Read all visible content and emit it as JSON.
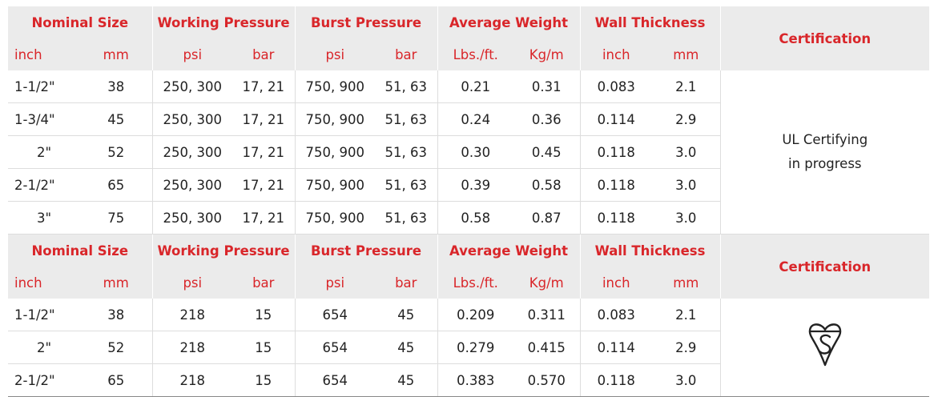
{
  "sections": [
    {
      "headers": {
        "nominal_size": "Nominal Size",
        "working_pressure": "Working Pressure",
        "burst_pressure": "Burst Pressure",
        "average_weight": "Average Weight",
        "wall_thickness": "Wall Thickness",
        "certification": "Certification"
      },
      "units": [
        "inch",
        "mm",
        "psi",
        "bar",
        "psi",
        "bar",
        "Lbs./ft.",
        "Kg/m",
        "inch",
        "mm"
      ],
      "rows": [
        [
          "1-1/2\"",
          "38",
          "250, 300",
          "17, 21",
          "750, 900",
          "51, 63",
          "0.21",
          "0.31",
          "0.083",
          "2.1"
        ],
        [
          "1-3/4\"",
          "45",
          "250, 300",
          "17, 21",
          "750, 900",
          "51, 63",
          "0.24",
          "0.36",
          "0.114",
          "2.9"
        ],
        [
          "2\"",
          "52",
          "250, 300",
          "17, 21",
          "750, 900",
          "51, 63",
          "0.30",
          "0.45",
          "0.118",
          "3.0"
        ],
        [
          "2-1/2\"",
          "65",
          "250, 300",
          "17, 21",
          "750, 900",
          "51, 63",
          "0.39",
          "0.58",
          "0.118",
          "3.0"
        ],
        [
          "3\"",
          "75",
          "250, 300",
          "17, 21",
          "750, 900",
          "51, 63",
          "0.58",
          "0.87",
          "0.118",
          "3.0"
        ]
      ],
      "certification": {
        "line1": "UL Certifying",
        "line2": "in progress"
      }
    },
    {
      "headers": {
        "nominal_size": "Nominal Size",
        "working_pressure": "Working Pressure",
        "burst_pressure": "Burst Pressure",
        "average_weight": "Average Weight",
        "wall_thickness": "Wall Thickness",
        "certification": "Certification"
      },
      "units": [
        "inch",
        "mm",
        "psi",
        "bar",
        "psi",
        "bar",
        "Lbs./ft.",
        "Kg/m",
        "inch",
        "mm"
      ],
      "rows": [
        [
          "1-1/2\"",
          "38",
          "218",
          "15",
          "654",
          "45",
          "0.209",
          "0.311",
          "0.083",
          "2.1"
        ],
        [
          "2\"",
          "52",
          "218",
          "15",
          "654",
          "45",
          "0.279",
          "0.415",
          "0.114",
          "2.9"
        ],
        [
          "2-1/2\"",
          "65",
          "218",
          "15",
          "654",
          "45",
          "0.383",
          "0.570",
          "0.118",
          "3.0"
        ]
      ],
      "certification_icon": "kitemark-icon"
    }
  ],
  "colors": {
    "header_text": "#d9262a",
    "header_bg": "#ebebeb",
    "body_text": "#222222"
  }
}
